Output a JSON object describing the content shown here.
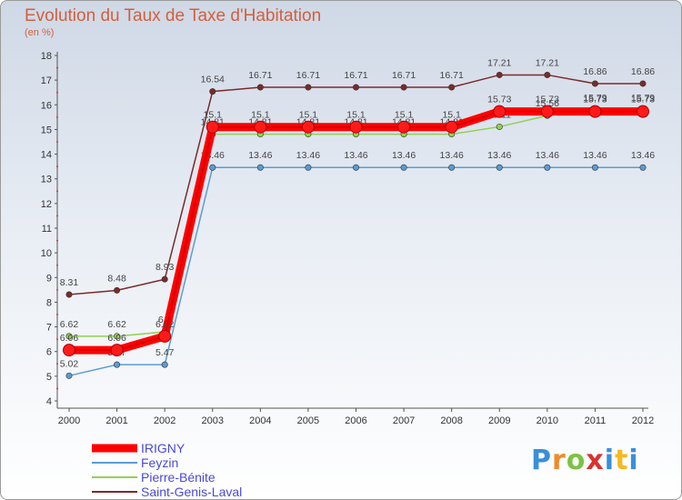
{
  "chart_data": {
    "type": "line",
    "title": "Evolution du Taux de Taxe d'Habitation",
    "subtitle": "(en %)",
    "x": [
      2000,
      2001,
      2002,
      2003,
      2004,
      2005,
      2006,
      2007,
      2008,
      2009,
      2010,
      2011,
      2012
    ],
    "x_tick_labels": [
      "2000",
      "2001",
      "2002",
      "2003",
      "2004",
      "2005",
      "2006",
      "2007",
      "2008",
      "2009",
      "2010",
      "2011",
      "2012"
    ],
    "ylim": [
      4,
      18
    ],
    "y_ticks": [
      4,
      5,
      6,
      7,
      8,
      9,
      10,
      11,
      12,
      13,
      14,
      15,
      16,
      17,
      18
    ],
    "grid": false,
    "legend_position": "bottom-left",
    "series": [
      {
        "name": "IRIGNY",
        "color": "#ff0000",
        "values": [
          6.06,
          6.06,
          6.62,
          15.1,
          15.1,
          15.1,
          15.1,
          15.1,
          15.1,
          15.73,
          15.73,
          15.73,
          15.73
        ],
        "labels": [
          "6.06",
          "6.06",
          "6.62",
          "15.1",
          "15.1",
          "15.1",
          "15.1",
          "15.1",
          "15.1",
          "15.73",
          "15.73",
          "15.73",
          "15.73"
        ]
      },
      {
        "name": "Feyzin",
        "color": "#5b9bd5",
        "values": [
          5.02,
          5.47,
          5.47,
          13.46,
          13.46,
          13.46,
          13.46,
          13.46,
          13.46,
          13.46,
          13.46,
          13.46,
          13.46
        ],
        "labels": [
          "5.02",
          "5.47",
          "5.47",
          "13.46",
          "13.46",
          "13.46",
          "13.46",
          "13.46",
          "13.46",
          "13.46",
          "13.46",
          "13.46",
          "13.46"
        ]
      },
      {
        "name": "Pierre-Bénite",
        "color": "#92d050",
        "values": [
          6.62,
          6.62,
          6.8,
          14.81,
          14.81,
          14.81,
          14.81,
          14.81,
          14.81,
          15.11,
          15.56,
          15.79,
          15.79
        ],
        "labels": [
          "6.62",
          "6.62",
          "6.8",
          "14.81",
          "14.81",
          "14.81",
          "14.81",
          "14.81",
          "14.81",
          "15.11",
          "15.56",
          "15.79",
          "15.79"
        ]
      },
      {
        "name": "Saint-Genis-Laval",
        "color": "#7b2a2a",
        "values": [
          8.31,
          8.48,
          8.93,
          16.54,
          16.71,
          16.71,
          16.71,
          16.71,
          16.71,
          17.21,
          17.21,
          16.86,
          16.86
        ],
        "labels": [
          "8.31",
          "8.48",
          "8.93",
          "16.54",
          "16.71",
          "16.71",
          "16.71",
          "16.71",
          "16.71",
          "17.21",
          "17.21",
          "16.86",
          "16.86"
        ]
      }
    ]
  },
  "logo": {
    "p": "P",
    "r": "r",
    "o": "o",
    "x": "x",
    "i": "i",
    "t": "t",
    "i2": "i"
  }
}
